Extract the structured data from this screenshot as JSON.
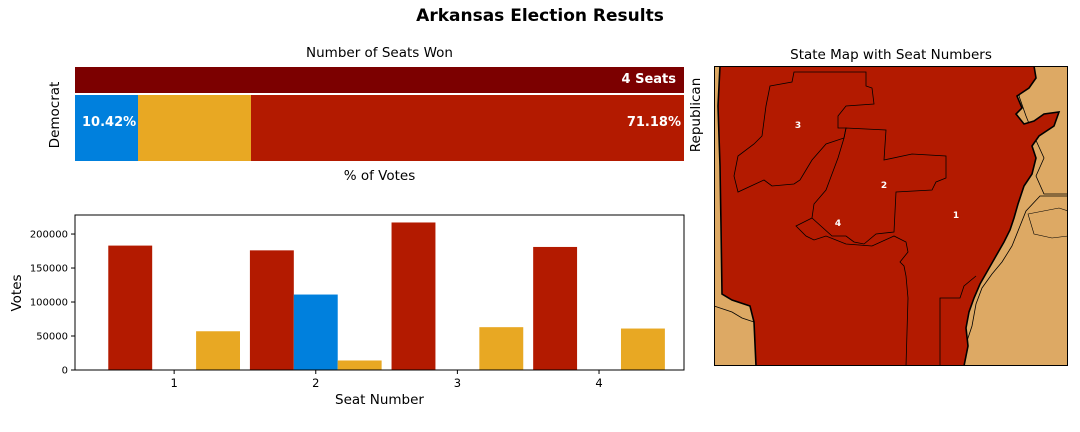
{
  "figure": {
    "title": "Arkansas Election Results"
  },
  "colors": {
    "republican": "#b31a00",
    "democrat": "#0080dd",
    "other": "#e8a823",
    "seat_bar": "#7c0000",
    "neighbor_state": "#dda964"
  },
  "chart_data": [
    {
      "type": "bar",
      "subtype": "stacked-horizontal",
      "title": "Number of Seats Won",
      "xlabel": "% of Votes",
      "left_label": "Democrat",
      "right_label": "Republican",
      "seats": {
        "value": 4,
        "label": "4 Seats"
      },
      "segments": [
        {
          "name": "Democrat",
          "value": 10.42,
          "label": "10.42%"
        },
        {
          "name": "Other",
          "value": 18.4,
          "label": ""
        },
        {
          "name": "Republican",
          "value": 71.18,
          "label": "71.18%"
        }
      ]
    },
    {
      "type": "bar",
      "subtype": "grouped",
      "xlabel": "Seat Number",
      "ylabel": "Votes",
      "ylim": [
        0,
        228000
      ],
      "yticks": [
        0,
        50000,
        100000,
        150000,
        200000
      ],
      "categories": [
        "1",
        "2",
        "3",
        "4"
      ],
      "series": [
        {
          "values": [
            183000,
            176000,
            217000,
            181000
          ]
        },
        {
          "values": [
            0,
            111000,
            0,
            0
          ]
        },
        {
          "values": [
            57000,
            14000,
            63000,
            61000
          ]
        }
      ]
    },
    {
      "type": "map",
      "title": "State Map with Seat Numbers",
      "district_labels": [
        "1",
        "2",
        "3",
        "4"
      ]
    }
  ]
}
